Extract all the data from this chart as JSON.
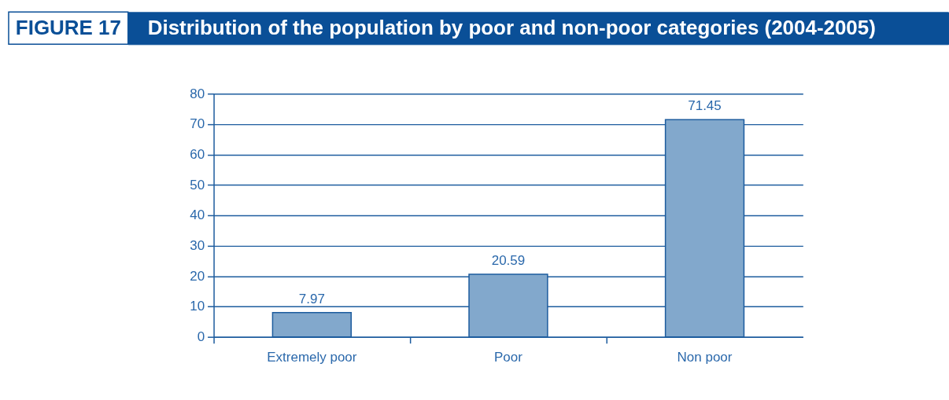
{
  "chart_data": {
    "type": "bar",
    "title": "Distribution of the population by poor and non-poor categories (2004-2005)",
    "annotations": [
      "FIGURE 17"
    ],
    "categories": [
      "Extremely poor",
      "Poor",
      "Non poor"
    ],
    "values": [
      7.97,
      20.59,
      71.45
    ],
    "color": "#82a8cc",
    "ylim": [
      0,
      80
    ],
    "yticks": [
      0,
      10,
      20,
      30,
      40,
      50,
      60,
      70,
      80
    ],
    "grid": "y",
    "data_labels": true
  }
}
